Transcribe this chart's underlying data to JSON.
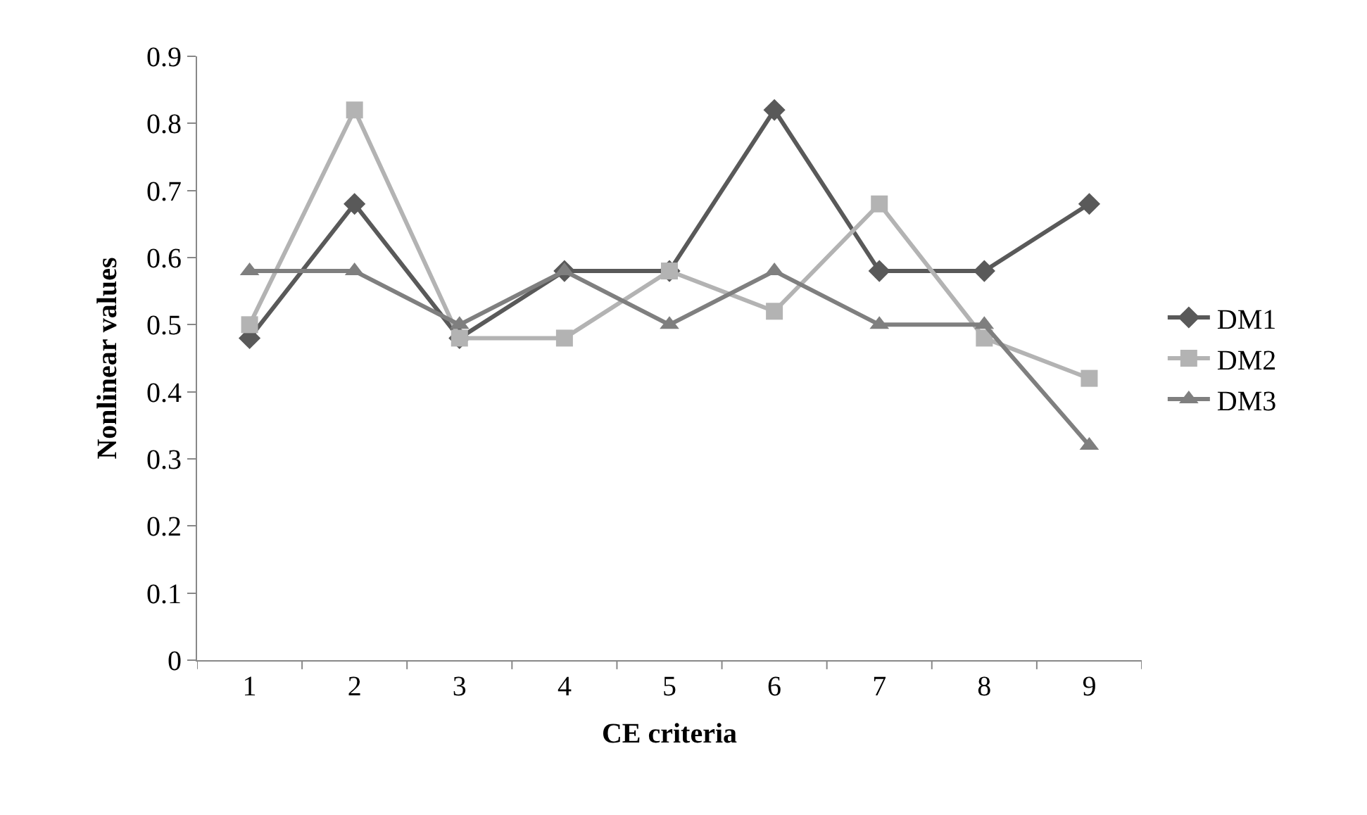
{
  "chart_data": {
    "type": "line",
    "xlabel": "CE criteria",
    "ylabel": "Nonlinear values",
    "categories": [
      "1",
      "2",
      "3",
      "4",
      "5",
      "6",
      "7",
      "8",
      "9"
    ],
    "series": [
      {
        "name": "DM1",
        "color": "#595959",
        "marker": "diamond",
        "values": [
          0.48,
          0.68,
          0.48,
          0.58,
          0.58,
          0.82,
          0.58,
          0.58,
          0.68
        ]
      },
      {
        "name": "DM2",
        "color": "#b3b3b3",
        "marker": "square",
        "values": [
          0.5,
          0.82,
          0.48,
          0.48,
          0.58,
          0.52,
          0.68,
          0.48,
          0.42
        ]
      },
      {
        "name": "DM3",
        "color": "#7f7f7f",
        "marker": "triangle",
        "values": [
          0.58,
          0.58,
          0.5,
          0.58,
          0.5,
          0.58,
          0.5,
          0.5,
          0.32
        ]
      }
    ],
    "ylim": [
      0,
      0.9
    ],
    "yticks": [
      0,
      {
        "value": 0.1,
        "label": "0.1"
      },
      {
        "value": 0.2,
        "label": "0.2"
      },
      {
        "value": 0.3,
        "label": "0.3"
      },
      {
        "value": 0.4,
        "label": "0.4"
      },
      {
        "value": 0.5,
        "label": "0.5"
      },
      {
        "value": 0.6,
        "label": "0.6"
      },
      {
        "value": 0.7,
        "label": "0.7"
      },
      {
        "value": 0.8,
        "label": "0.8"
      },
      {
        "value": 0.9,
        "label": "0.9"
      }
    ],
    "legend": "right",
    "line_style": "solid"
  }
}
